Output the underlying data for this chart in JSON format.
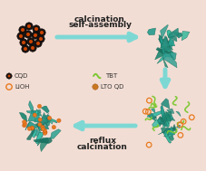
{
  "bg_color": "#f2ddd4",
  "arrow_color": "#7dd8d4",
  "teal_color": "#2a9d8f",
  "teal_light": "#3dbda8",
  "teal_dark": "#1a7060",
  "teal_mid": "#228878",
  "green_squiggle_color": "#7dc832",
  "orange_dot_color": "#e87a20",
  "orange_ring_color": "#e87a20",
  "dark_dot_color": "#1a1210",
  "dark_dot_inner": "#cc4400",
  "arrow1_text_line1": "calcination",
  "arrow1_text_line2": "self-assembly",
  "arrow2_text_line1": "reflux",
  "arrow2_text_line2": "calcination",
  "legend_cqd": "CQD",
  "legend_tbt": "TBT",
  "legend_lioh": "LiOH",
  "legend_ltoqd": "LTO QD",
  "figsize": [
    2.27,
    1.89
  ],
  "dpi": 100
}
